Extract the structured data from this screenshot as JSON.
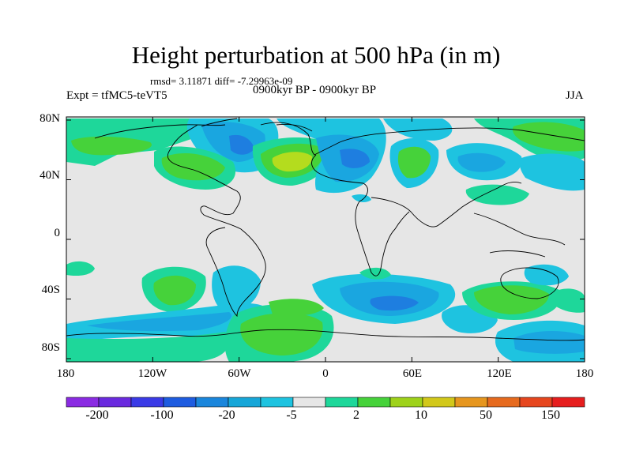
{
  "title": "Height perturbation at 500 hPa (in m)",
  "stats": "rmsd= 3.11871 diff= -7.29963e-09",
  "subtitle": "0900kyr BP - 0900kyr BP",
  "experiment": "Expt = tfMC5-teVT5",
  "season": "JJA",
  "lat_labels": [
    "80N",
    "40N",
    "0",
    "40S",
    "80S"
  ],
  "lon_labels": [
    "180",
    "120W",
    "60W",
    "0",
    "60E",
    "120E",
    "180"
  ],
  "colorbar": {
    "labels": [
      "-200",
      "-100",
      "-20",
      "-5",
      "2",
      "10",
      "50",
      "150"
    ],
    "colors": [
      "#8a2be2",
      "#6a2adf",
      "#3a3ae6",
      "#1e5ce0",
      "#1a86dc",
      "#16a6d8",
      "#1ec3e0",
      "#e6e6e6",
      "#1ed79a",
      "#46d23a",
      "#9ed21a",
      "#d2c81a",
      "#e6961e",
      "#e66a1e",
      "#e6461e",
      "#e61e1e"
    ]
  },
  "map_colors": {
    "background": "#e6e6e6",
    "light_blue": "#1ec3e0",
    "medium_blue": "#1aa6e0",
    "dark_blue": "#1e7ee0",
    "green_light": "#1ed79a",
    "green": "#46d23a",
    "yellow_green": "#b4dc1e",
    "coast": "#000000"
  }
}
